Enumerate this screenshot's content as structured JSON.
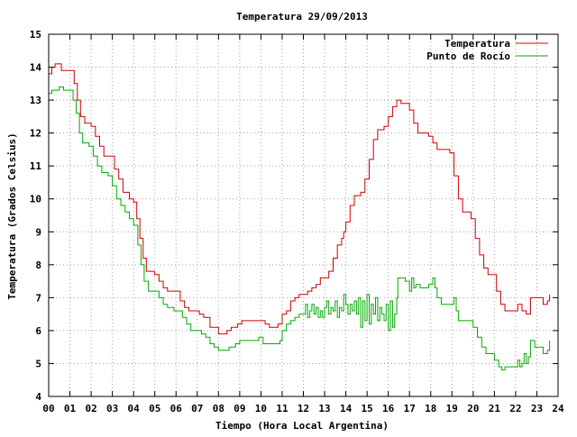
{
  "chart_data": {
    "type": "line",
    "title": "Temperatura 29/09/2013",
    "xlabel": "Tiempo (Hora Local Argentina)",
    "ylabel": "Temperatura (Grados Celsius)",
    "xlim": [
      0,
      24
    ],
    "ylim": [
      4,
      15
    ],
    "x_ticks": [
      "00",
      "01",
      "02",
      "03",
      "04",
      "05",
      "06",
      "07",
      "08",
      "09",
      "10",
      "11",
      "12",
      "13",
      "14",
      "15",
      "16",
      "17",
      "18",
      "19",
      "20",
      "21",
      "22",
      "23",
      "24"
    ],
    "y_ticks": [
      "4",
      "5",
      "6",
      "7",
      "8",
      "9",
      "10",
      "11",
      "12",
      "13",
      "14",
      "15"
    ],
    "grid": true,
    "legend_position": "top-right",
    "series": [
      {
        "name": "Temperatura",
        "color": "#cc0000",
        "points": [
          [
            0.0,
            13.8
          ],
          [
            0.15,
            14.0
          ],
          [
            0.3,
            14.1
          ],
          [
            0.5,
            14.1
          ],
          [
            0.6,
            13.9
          ],
          [
            0.9,
            13.9
          ],
          [
            1.05,
            13.9
          ],
          [
            1.2,
            13.5
          ],
          [
            1.35,
            13.0
          ],
          [
            1.5,
            12.5
          ],
          [
            1.7,
            12.3
          ],
          [
            2.0,
            12.2
          ],
          [
            2.2,
            11.9
          ],
          [
            2.4,
            11.6
          ],
          [
            2.6,
            11.3
          ],
          [
            2.9,
            11.3
          ],
          [
            3.1,
            10.9
          ],
          [
            3.3,
            10.6
          ],
          [
            3.5,
            10.2
          ],
          [
            3.8,
            10.0
          ],
          [
            4.0,
            9.9
          ],
          [
            4.15,
            9.4
          ],
          [
            4.3,
            8.8
          ],
          [
            4.45,
            8.2
          ],
          [
            4.6,
            7.8
          ],
          [
            4.8,
            7.8
          ],
          [
            5.0,
            7.7
          ],
          [
            5.2,
            7.5
          ],
          [
            5.4,
            7.3
          ],
          [
            5.6,
            7.2
          ],
          [
            5.8,
            7.2
          ],
          [
            6.0,
            7.2
          ],
          [
            6.2,
            6.9
          ],
          [
            6.4,
            6.7
          ],
          [
            6.6,
            6.6
          ],
          [
            6.9,
            6.6
          ],
          [
            7.1,
            6.5
          ],
          [
            7.3,
            6.4
          ],
          [
            7.6,
            6.1
          ],
          [
            7.8,
            6.1
          ],
          [
            8.0,
            5.9
          ],
          [
            8.2,
            5.9
          ],
          [
            8.4,
            6.0
          ],
          [
            8.6,
            6.1
          ],
          [
            8.9,
            6.2
          ],
          [
            9.1,
            6.3
          ],
          [
            9.4,
            6.3
          ],
          [
            9.7,
            6.3
          ],
          [
            10.0,
            6.3
          ],
          [
            10.2,
            6.2
          ],
          [
            10.4,
            6.1
          ],
          [
            10.6,
            6.1
          ],
          [
            10.8,
            6.2
          ],
          [
            11.0,
            6.5
          ],
          [
            11.2,
            6.6
          ],
          [
            11.4,
            6.9
          ],
          [
            11.6,
            7.0
          ],
          [
            11.8,
            7.1
          ],
          [
            12.0,
            7.1
          ],
          [
            12.2,
            7.2
          ],
          [
            12.4,
            7.3
          ],
          [
            12.6,
            7.4
          ],
          [
            12.8,
            7.6
          ],
          [
            13.0,
            7.6
          ],
          [
            13.2,
            7.8
          ],
          [
            13.4,
            8.2
          ],
          [
            13.6,
            8.6
          ],
          [
            13.8,
            8.8
          ],
          [
            13.9,
            9.0
          ],
          [
            14.0,
            9.3
          ],
          [
            14.2,
            9.8
          ],
          [
            14.4,
            10.1
          ],
          [
            14.7,
            10.2
          ],
          [
            14.9,
            10.6
          ],
          [
            15.1,
            11.2
          ],
          [
            15.3,
            11.8
          ],
          [
            15.5,
            12.1
          ],
          [
            15.8,
            12.2
          ],
          [
            16.0,
            12.5
          ],
          [
            16.2,
            12.8
          ],
          [
            16.4,
            13.0
          ],
          [
            16.6,
            12.9
          ],
          [
            16.9,
            12.9
          ],
          [
            17.0,
            12.7
          ],
          [
            17.2,
            12.3
          ],
          [
            17.4,
            12.0
          ],
          [
            17.7,
            12.0
          ],
          [
            17.9,
            11.9
          ],
          [
            18.1,
            11.7
          ],
          [
            18.3,
            11.5
          ],
          [
            18.6,
            11.5
          ],
          [
            18.9,
            11.4
          ],
          [
            19.1,
            10.7
          ],
          [
            19.3,
            10.0
          ],
          [
            19.5,
            9.6
          ],
          [
            19.7,
            9.6
          ],
          [
            19.9,
            9.4
          ],
          [
            20.1,
            8.8
          ],
          [
            20.3,
            8.3
          ],
          [
            20.5,
            7.9
          ],
          [
            20.7,
            7.7
          ],
          [
            20.9,
            7.7
          ],
          [
            21.1,
            7.2
          ],
          [
            21.3,
            6.8
          ],
          [
            21.5,
            6.6
          ],
          [
            21.8,
            6.6
          ],
          [
            22.0,
            6.6
          ],
          [
            22.1,
            6.8
          ],
          [
            22.3,
            6.6
          ],
          [
            22.5,
            6.5
          ],
          [
            22.7,
            7.0
          ],
          [
            22.9,
            7.0
          ],
          [
            23.1,
            7.0
          ],
          [
            23.3,
            6.8
          ],
          [
            23.5,
            6.9
          ],
          [
            23.6,
            7.1
          ]
        ]
      },
      {
        "name": "Punto de Rocío",
        "color": "#00aa00",
        "points": [
          [
            0.0,
            13.2
          ],
          [
            0.15,
            13.3
          ],
          [
            0.3,
            13.3
          ],
          [
            0.5,
            13.4
          ],
          [
            0.7,
            13.3
          ],
          [
            1.0,
            13.3
          ],
          [
            1.15,
            13.0
          ],
          [
            1.3,
            12.6
          ],
          [
            1.45,
            12.0
          ],
          [
            1.6,
            11.7
          ],
          [
            1.9,
            11.6
          ],
          [
            2.1,
            11.3
          ],
          [
            2.3,
            11.0
          ],
          [
            2.5,
            10.8
          ],
          [
            2.8,
            10.7
          ],
          [
            3.0,
            10.4
          ],
          [
            3.2,
            10.0
          ],
          [
            3.4,
            9.8
          ],
          [
            3.6,
            9.6
          ],
          [
            3.8,
            9.4
          ],
          [
            4.0,
            9.2
          ],
          [
            4.2,
            8.6
          ],
          [
            4.35,
            8.0
          ],
          [
            4.5,
            7.5
          ],
          [
            4.7,
            7.2
          ],
          [
            5.0,
            7.2
          ],
          [
            5.2,
            7.0
          ],
          [
            5.4,
            6.8
          ],
          [
            5.6,
            6.7
          ],
          [
            5.9,
            6.6
          ],
          [
            6.1,
            6.6
          ],
          [
            6.3,
            6.4
          ],
          [
            6.5,
            6.2
          ],
          [
            6.7,
            6.0
          ],
          [
            7.0,
            6.0
          ],
          [
            7.2,
            5.9
          ],
          [
            7.4,
            5.8
          ],
          [
            7.6,
            5.6
          ],
          [
            7.8,
            5.5
          ],
          [
            8.0,
            5.4
          ],
          [
            8.3,
            5.4
          ],
          [
            8.5,
            5.5
          ],
          [
            8.8,
            5.6
          ],
          [
            9.0,
            5.7
          ],
          [
            9.3,
            5.7
          ],
          [
            9.6,
            5.7
          ],
          [
            9.9,
            5.8
          ],
          [
            10.1,
            5.6
          ],
          [
            10.3,
            5.6
          ],
          [
            10.6,
            5.6
          ],
          [
            10.9,
            5.7
          ],
          [
            11.0,
            6.0
          ],
          [
            11.2,
            6.2
          ],
          [
            11.4,
            6.3
          ],
          [
            11.6,
            6.4
          ],
          [
            11.8,
            6.5
          ],
          [
            12.0,
            6.5
          ],
          [
            12.1,
            6.8
          ],
          [
            12.2,
            6.4
          ],
          [
            12.3,
            6.6
          ],
          [
            12.4,
            6.8
          ],
          [
            12.5,
            6.5
          ],
          [
            12.6,
            6.7
          ],
          [
            12.7,
            6.4
          ],
          [
            12.8,
            6.6
          ],
          [
            12.9,
            6.4
          ],
          [
            13.0,
            6.7
          ],
          [
            13.1,
            6.9
          ],
          [
            13.2,
            6.5
          ],
          [
            13.3,
            6.7
          ],
          [
            13.4,
            6.6
          ],
          [
            13.5,
            6.9
          ],
          [
            13.6,
            6.4
          ],
          [
            13.7,
            6.7
          ],
          [
            13.8,
            6.6
          ],
          [
            13.9,
            7.1
          ],
          [
            14.0,
            6.8
          ],
          [
            14.1,
            6.5
          ],
          [
            14.2,
            6.8
          ],
          [
            14.3,
            6.6
          ],
          [
            14.4,
            6.9
          ],
          [
            14.5,
            6.5
          ],
          [
            14.6,
            7.0
          ],
          [
            14.7,
            6.1
          ],
          [
            14.8,
            6.9
          ],
          [
            14.9,
            6.3
          ],
          [
            15.0,
            7.1
          ],
          [
            15.1,
            6.2
          ],
          [
            15.2,
            6.8
          ],
          [
            15.3,
            6.5
          ],
          [
            15.4,
            7.0
          ],
          [
            15.5,
            6.3
          ],
          [
            15.6,
            6.7
          ],
          [
            15.7,
            6.5
          ],
          [
            15.8,
            6.3
          ],
          [
            15.9,
            6.8
          ],
          [
            16.0,
            6.0
          ],
          [
            16.1,
            6.9
          ],
          [
            16.2,
            6.1
          ],
          [
            16.3,
            6.5
          ],
          [
            16.4,
            7.0
          ],
          [
            16.45,
            7.6
          ],
          [
            16.6,
            7.6
          ],
          [
            16.8,
            7.5
          ],
          [
            17.0,
            7.2
          ],
          [
            17.1,
            7.6
          ],
          [
            17.2,
            7.3
          ],
          [
            17.3,
            7.4
          ],
          [
            17.5,
            7.3
          ],
          [
            17.7,
            7.3
          ],
          [
            17.9,
            7.4
          ],
          [
            18.1,
            7.6
          ],
          [
            18.2,
            7.3
          ],
          [
            18.3,
            7.0
          ],
          [
            18.5,
            6.8
          ],
          [
            18.8,
            6.8
          ],
          [
            19.0,
            6.8
          ],
          [
            19.1,
            7.0
          ],
          [
            19.2,
            6.6
          ],
          [
            19.3,
            6.3
          ],
          [
            19.5,
            6.3
          ],
          [
            19.8,
            6.3
          ],
          [
            20.0,
            6.1
          ],
          [
            20.2,
            5.8
          ],
          [
            20.4,
            5.5
          ],
          [
            20.6,
            5.3
          ],
          [
            20.8,
            5.3
          ],
          [
            21.0,
            5.1
          ],
          [
            21.2,
            4.9
          ],
          [
            21.35,
            4.8
          ],
          [
            21.5,
            4.9
          ],
          [
            21.8,
            4.9
          ],
          [
            22.0,
            4.9
          ],
          [
            22.1,
            5.1
          ],
          [
            22.2,
            4.9
          ],
          [
            22.3,
            5.0
          ],
          [
            22.4,
            5.3
          ],
          [
            22.5,
            5.0
          ],
          [
            22.6,
            5.2
          ],
          [
            22.7,
            5.7
          ],
          [
            22.9,
            5.5
          ],
          [
            23.1,
            5.5
          ],
          [
            23.3,
            5.3
          ],
          [
            23.5,
            5.4
          ],
          [
            23.6,
            5.7
          ]
        ]
      }
    ]
  }
}
